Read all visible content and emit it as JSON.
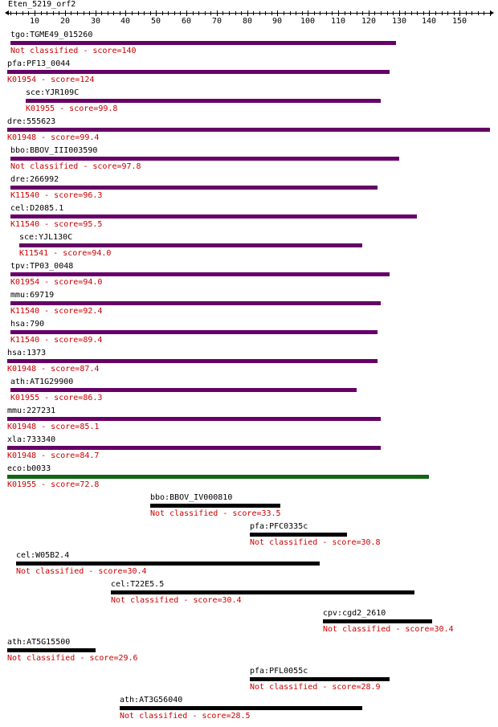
{
  "query": {
    "name": "Eten_5219_orf2",
    "length": 160
  },
  "ruler": {
    "labels": [
      "10",
      "20",
      "30",
      "40",
      "50",
      "60",
      "70",
      "80",
      "90",
      "100",
      "110",
      "120",
      "130",
      "140",
      "150"
    ]
  },
  "colors": {
    "purple": "#660066",
    "green": "#116611",
    "black": "#000000",
    "score_text": "#cc0000"
  },
  "hits": [
    {
      "name": "tgo:TGME49_015260",
      "class": "Not classified",
      "score": "140",
      "start": 2,
      "end": 129,
      "color": "purple"
    },
    {
      "name": "pfa:PF13_0044",
      "class": "K01954",
      "score": "124",
      "start": 1,
      "end": 127,
      "color": "purple"
    },
    {
      "name": "sce:YJR109C",
      "class": "K01955",
      "score": "99.8",
      "start": 7,
      "end": 124,
      "color": "purple"
    },
    {
      "name": "dre:555623",
      "class": "K01948",
      "score": "99.4",
      "start": 1,
      "end": 160,
      "color": "purple"
    },
    {
      "name": "bbo:BBOV_III003590",
      "class": "Not classified",
      "score": "97.8",
      "start": 2,
      "end": 130,
      "color": "purple"
    },
    {
      "name": "dre:266992",
      "class": "K11540",
      "score": "96.3",
      "start": 2,
      "end": 123,
      "color": "purple"
    },
    {
      "name": "cel:D2085.1",
      "class": "K11540",
      "score": "95.5",
      "start": 2,
      "end": 136,
      "color": "purple"
    },
    {
      "name": "sce:YJL130C",
      "class": "K11541",
      "score": "94.0",
      "start": 5,
      "end": 118,
      "color": "purple"
    },
    {
      "name": "tpv:TP03_0048",
      "class": "K01954",
      "score": "94.0",
      "start": 2,
      "end": 127,
      "color": "purple"
    },
    {
      "name": "mmu:69719",
      "class": "K11540",
      "score": "92.4",
      "start": 2,
      "end": 124,
      "color": "purple"
    },
    {
      "name": "hsa:790",
      "class": "K11540",
      "score": "89.4",
      "start": 2,
      "end": 123,
      "color": "purple"
    },
    {
      "name": "hsa:1373",
      "class": "K01948",
      "score": "87.4",
      "start": 1,
      "end": 123,
      "color": "purple"
    },
    {
      "name": "ath:AT1G29900",
      "class": "K01955",
      "score": "86.3",
      "start": 2,
      "end": 116,
      "color": "purple"
    },
    {
      "name": "mmu:227231",
      "class": "K01948",
      "score": "85.1",
      "start": 1,
      "end": 124,
      "color": "purple"
    },
    {
      "name": "xla:733340",
      "class": "K01948",
      "score": "84.7",
      "start": 1,
      "end": 124,
      "color": "purple"
    },
    {
      "name": "eco:b0033",
      "class": "K01955",
      "score": "72.8",
      "start": 1,
      "end": 140,
      "color": "green"
    },
    {
      "name": "bbo:BBOV_IV000810",
      "class": "Not classified",
      "score": "33.5",
      "start": 48,
      "end": 91,
      "color": "black"
    },
    {
      "name": "pfa:PFC0335c",
      "class": "Not classified",
      "score": "30.8",
      "start": 81,
      "end": 113,
      "color": "black"
    },
    {
      "name": "cel:W05B2.4",
      "class": "Not classified",
      "score": "30.4",
      "start": 4,
      "end": 104,
      "color": "black"
    },
    {
      "name": "cel:T22E5.5",
      "class": "Not classified",
      "score": "30.4",
      "start": 35,
      "end": 135,
      "color": "black"
    },
    {
      "name": "cpv:cgd2_2610",
      "class": "Not classified",
      "score": "30.4",
      "start": 105,
      "end": 141,
      "color": "black"
    },
    {
      "name": "ath:AT5G15500",
      "class": "Not classified",
      "score": "29.6",
      "start": 1,
      "end": 30,
      "color": "black"
    },
    {
      "name": "pfa:PFL0055c",
      "class": "Not classified",
      "score": "28.9",
      "start": 81,
      "end": 127,
      "color": "black"
    },
    {
      "name": "ath:AT3G56040",
      "class": "Not classified",
      "score": "28.5",
      "start": 38,
      "end": 118,
      "color": "black"
    }
  ]
}
